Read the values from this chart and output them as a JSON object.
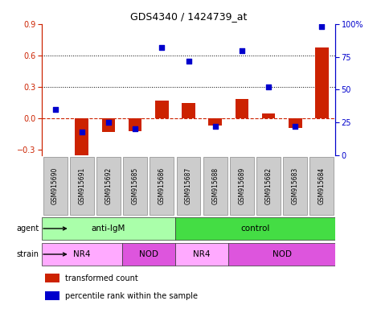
{
  "title": "GDS4340 / 1424739_at",
  "samples": [
    "GSM915690",
    "GSM915691",
    "GSM915692",
    "GSM915685",
    "GSM915686",
    "GSM915687",
    "GSM915688",
    "GSM915689",
    "GSM915682",
    "GSM915683",
    "GSM915684"
  ],
  "red_values": [
    0.0,
    -0.35,
    -0.13,
    -0.12,
    0.17,
    0.15,
    -0.07,
    0.19,
    0.05,
    -0.09,
    0.68
  ],
  "blue_values": [
    35,
    18,
    25,
    20,
    82,
    72,
    22,
    80,
    52,
    22,
    98
  ],
  "ylim_left": [
    -0.35,
    0.9
  ],
  "ylim_right": [
    0,
    100
  ],
  "yticks_left": [
    -0.3,
    0.0,
    0.3,
    0.6,
    0.9
  ],
  "yticks_right": [
    0,
    25,
    50,
    75,
    100
  ],
  "ytick_labels_right": [
    "0",
    "25",
    "50",
    "75",
    "100%"
  ],
  "red_color": "#cc2200",
  "blue_color": "#0000cc",
  "bar_width": 0.5,
  "agent_labels": [
    {
      "label": "anti-IgM",
      "start": 0,
      "end": 5,
      "color": "#aaffaa"
    },
    {
      "label": "control",
      "start": 5,
      "end": 11,
      "color": "#44dd44"
    }
  ],
  "strain_labels": [
    {
      "label": "NR4",
      "start": 0,
      "end": 3,
      "color": "#ffaaff"
    },
    {
      "label": "NOD",
      "start": 3,
      "end": 5,
      "color": "#dd55dd"
    },
    {
      "label": "NR4",
      "start": 5,
      "end": 7,
      "color": "#ffaaff"
    },
    {
      "label": "NOD",
      "start": 7,
      "end": 11,
      "color": "#dd55dd"
    }
  ],
  "legend_items": [
    {
      "label": "transformed count",
      "color": "#cc2200"
    },
    {
      "label": "percentile rank within the sample",
      "color": "#0000cc"
    }
  ],
  "background_color": "#ffffff",
  "tick_bg_color": "#cccccc",
  "agent_row_label": "agent",
  "strain_row_label": "strain"
}
